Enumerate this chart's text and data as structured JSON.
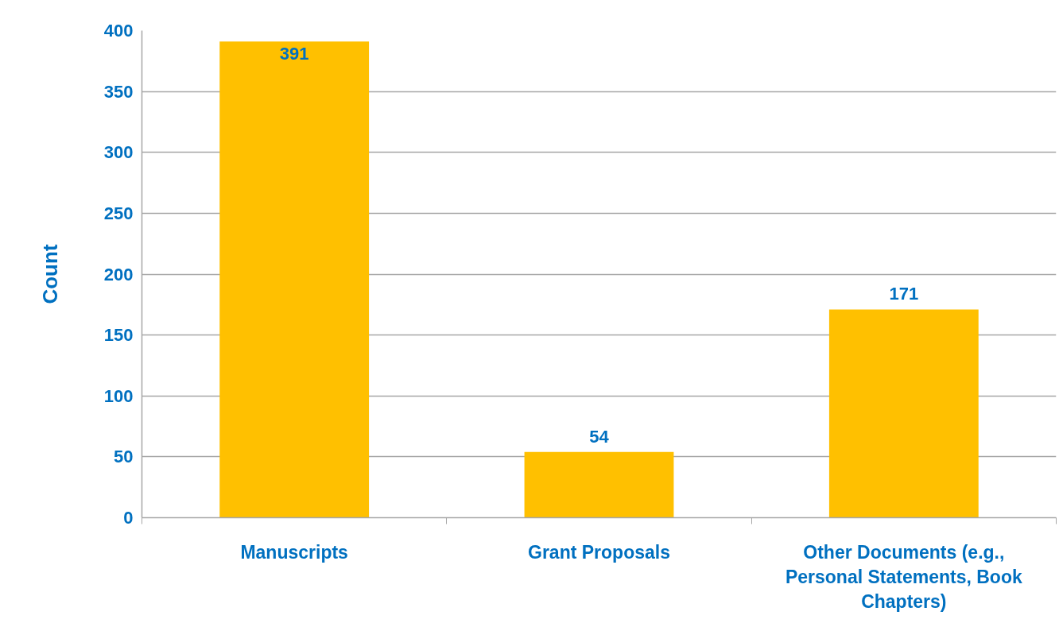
{
  "chart_data": {
    "type": "bar",
    "ylabel": "Count",
    "categories": [
      "Manuscripts",
      "Grant Proposals",
      "Other Documents (e.g., Personal Statements, Book Chapters)"
    ],
    "values": [
      391,
      54,
      171
    ],
    "color": "#ffc000",
    "ylim": [
      0,
      400
    ],
    "yticks": [
      0,
      50,
      100,
      150,
      200,
      250,
      300,
      350,
      400
    ],
    "grid": "y",
    "data_labels": true
  }
}
